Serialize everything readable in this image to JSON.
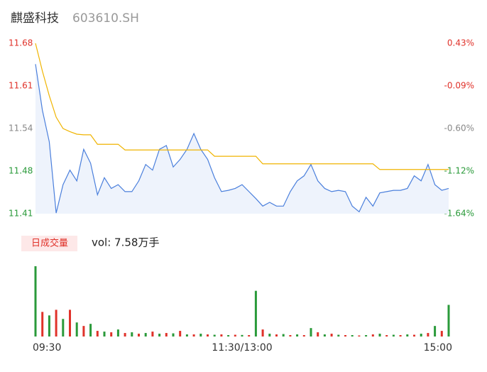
{
  "chart_data": {
    "type": "intraday",
    "title": "麒盛科技",
    "subtitle": "603610.SH",
    "x": [
      0,
      4,
      8,
      12,
      16,
      20,
      24,
      28,
      32,
      36,
      40,
      44,
      48,
      52,
      56,
      60,
      64,
      68,
      72,
      76,
      80,
      84,
      88,
      92,
      96,
      100,
      104,
      108,
      112,
      116,
      120,
      124,
      128,
      132,
      136,
      140,
      144,
      148,
      152,
      156,
      160,
      164,
      168,
      172,
      176,
      180,
      184,
      188,
      192,
      196,
      200,
      204,
      208,
      212,
      216,
      220,
      224,
      228,
      232,
      236,
      240
    ],
    "xlim": [
      0,
      240
    ],
    "xticks": [
      {
        "value": 0,
        "label": "09:30"
      },
      {
        "value": 120,
        "label": "11:30/13:00"
      },
      {
        "value": 240,
        "label": "15:00"
      }
    ],
    "ylim": [
      11.41,
      11.68
    ],
    "yticks": [
      {
        "value": 11.68,
        "label": "11.68"
      },
      {
        "value": 11.6125,
        "label": "11.61"
      },
      {
        "value": 11.545,
        "label": "11.54"
      },
      {
        "value": 11.4775,
        "label": "11.48"
      },
      {
        "value": 11.41,
        "label": "11.41"
      }
    ],
    "ytick_colors": [
      "#e0322a",
      "#e0322a",
      "#888888",
      "#2a9a3a",
      "#2a9a3a"
    ],
    "y2lim": [
      -1.64,
      0.43
    ],
    "y2ticks": [
      {
        "value": 0.43,
        "label": "0.43%"
      },
      {
        "value": -0.0875,
        "label": "-0.09%"
      },
      {
        "value": -0.605,
        "label": "-0.60%"
      },
      {
        "value": -1.1225,
        "label": "-1.12%"
      },
      {
        "value": -1.64,
        "label": "-1.64%"
      }
    ],
    "series": [
      {
        "name": "price",
        "color": "#4a7fdc",
        "values": [
          11.647,
          11.574,
          11.524,
          11.411,
          11.456,
          11.479,
          11.462,
          11.512,
          11.49,
          11.44,
          11.467,
          11.45,
          11.456,
          11.445,
          11.445,
          11.462,
          11.488,
          11.479,
          11.512,
          11.518,
          11.484,
          11.496,
          11.512,
          11.537,
          11.512,
          11.496,
          11.467,
          11.445,
          11.447,
          11.45,
          11.456,
          11.445,
          11.434,
          11.422,
          11.428,
          11.422,
          11.422,
          11.445,
          11.462,
          11.47,
          11.488,
          11.462,
          11.45,
          11.445,
          11.447,
          11.445,
          11.422,
          11.413,
          11.436,
          11.422,
          11.443,
          11.445,
          11.447,
          11.447,
          11.45,
          11.47,
          11.462,
          11.488,
          11.456,
          11.447,
          11.45
        ]
      },
      {
        "name": "average",
        "color": "#f0b400",
        "values": [
          11.68,
          11.636,
          11.597,
          11.563,
          11.545,
          11.54,
          11.536,
          11.535,
          11.535,
          11.52,
          11.52,
          11.52,
          11.52,
          11.511,
          11.511,
          11.511,
          11.511,
          11.511,
          11.511,
          11.511,
          11.511,
          11.511,
          11.511,
          11.511,
          11.511,
          11.511,
          11.501,
          11.501,
          11.501,
          11.501,
          11.501,
          11.501,
          11.501,
          11.489,
          11.489,
          11.489,
          11.489,
          11.489,
          11.489,
          11.489,
          11.489,
          11.489,
          11.489,
          11.489,
          11.489,
          11.489,
          11.489,
          11.489,
          11.489,
          11.489,
          11.48,
          11.48,
          11.48,
          11.48,
          11.48,
          11.48,
          11.48,
          11.48,
          11.48,
          11.48,
          11.48
        ]
      }
    ],
    "volume_legend": "日成交量",
    "volume_label": "vol: 7.58万手",
    "volume": [
      1000,
      350,
      300,
      380,
      250,
      380,
      200,
      150,
      180,
      80,
      70,
      60,
      100,
      50,
      60,
      40,
      50,
      70,
      40,
      50,
      45,
      80,
      30,
      30,
      40,
      30,
      25,
      30,
      20,
      25,
      22,
      20,
      650,
      100,
      40,
      30,
      35,
      20,
      30,
      20,
      120,
      60,
      30,
      40,
      25,
      20,
      20,
      15,
      20,
      30,
      40,
      20,
      25,
      20,
      30,
      25,
      40,
      50,
      150,
      80,
      450
    ],
    "volume_colors": [
      "#2a9a3a",
      "#e0322a",
      "#2a9a3a",
      "#e0322a",
      "#2a9a3a",
      "#e0322a",
      "#2a9a3a",
      "#e0322a",
      "#2a9a3a",
      "#e0322a",
      "#2a9a3a",
      "#e0322a",
      "#2a9a3a",
      "#e0322a",
      "#2a9a3a",
      "#e0322a",
      "#2a9a3a",
      "#e0322a",
      "#2a9a3a",
      "#e0322a",
      "#2a9a3a",
      "#e0322a",
      "#2a9a3a",
      "#e0322a",
      "#2a9a3a",
      "#e0322a",
      "#2a9a3a",
      "#e0322a",
      "#2a9a3a",
      "#e0322a",
      "#2a9a3a",
      "#e0322a",
      "#2a9a3a",
      "#e0322a",
      "#2a9a3a",
      "#e0322a",
      "#2a9a3a",
      "#e0322a",
      "#2a9a3a",
      "#e0322a",
      "#2a9a3a",
      "#e0322a",
      "#2a9a3a",
      "#e0322a",
      "#2a9a3a",
      "#e0322a",
      "#2a9a3a",
      "#e0322a",
      "#2a9a3a",
      "#e0322a",
      "#2a9a3a",
      "#e0322a",
      "#2a9a3a",
      "#e0322a",
      "#2a9a3a",
      "#e0322a",
      "#2a9a3a",
      "#e0322a",
      "#2a9a3a",
      "#e0322a",
      "#2a9a3a"
    ]
  }
}
